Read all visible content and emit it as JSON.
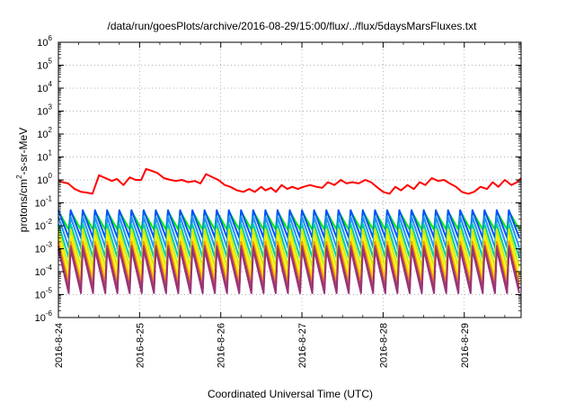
{
  "chart_data": {
    "type": "line",
    "title": "/data/run/goesPlots/archive/2016-08-29/15:00/flux/../flux/5daysMarsFluxes.txt",
    "xlabel": "Coordinated Universal Time (UTC)",
    "ylabel": {
      "base": "protons/cm",
      "sup": "2",
      "rest": "-s-sr-MeV"
    },
    "yscale": "log",
    "ylim_exp": [
      -6,
      6
    ],
    "xlim_days": [
      0,
      5.7
    ],
    "x_ticks": [
      {
        "label": "2016-8-24",
        "pos": 0
      },
      {
        "label": "2016-8-25",
        "pos": 1
      },
      {
        "label": "2016-8-26",
        "pos": 2
      },
      {
        "label": "2016-8-27",
        "pos": 3
      },
      {
        "label": "2016-8-28",
        "pos": 4
      },
      {
        "label": "2016-8-29",
        "pos": 5
      }
    ],
    "y_ticks": [
      {
        "base": "10",
        "exp": "6",
        "value": 6
      },
      {
        "base": "10",
        "exp": "5",
        "value": 5
      },
      {
        "base": "10",
        "exp": "4",
        "value": 4
      },
      {
        "base": "10",
        "exp": "3",
        "value": 3
      },
      {
        "base": "10",
        "exp": "2",
        "value": 2
      },
      {
        "base": "10",
        "exp": "1",
        "value": 1
      },
      {
        "base": "10",
        "exp": "0",
        "value": 0
      },
      {
        "base": "10",
        "exp": "-1",
        "value": -1
      },
      {
        "base": "10",
        "exp": "-2",
        "value": -2
      },
      {
        "base": "10",
        "exp": "-3",
        "value": -3
      },
      {
        "base": "10",
        "exp": "-4",
        "value": -4
      },
      {
        "base": "10",
        "exp": "-5",
        "value": -5
      },
      {
        "base": "10",
        "exp": "-6",
        "value": -6
      }
    ],
    "grid": true,
    "series": [
      {
        "color": "#ff0000",
        "x": [
          0,
          0.05,
          0.12,
          0.2,
          0.28,
          0.35,
          0.42,
          0.5,
          0.58,
          0.66,
          0.72,
          0.8,
          0.88,
          0.95,
          1.02,
          1.08,
          1.15,
          1.22,
          1.3,
          1.38,
          1.45,
          1.52,
          1.6,
          1.68,
          1.75,
          1.82,
          1.9,
          1.97,
          2.05,
          2.12,
          2.2,
          2.28,
          2.35,
          2.42,
          2.5,
          2.55,
          2.62,
          2.68,
          2.75,
          2.82,
          2.88,
          2.95,
          3.02,
          3.1,
          3.18,
          3.25,
          3.32,
          3.4,
          3.48,
          3.55,
          3.62,
          3.7,
          3.78,
          3.85,
          3.92,
          4.0,
          4.08,
          4.15,
          4.22,
          4.3,
          4.38,
          4.45,
          4.52,
          4.6,
          4.68,
          4.75,
          4.82,
          4.9,
          4.97,
          5.05,
          5.12,
          5.2,
          5.28,
          5.35,
          5.42,
          5.5,
          5.58,
          5.65,
          5.7
        ],
        "y": [
          1.0,
          0.8,
          0.7,
          0.4,
          0.3,
          0.28,
          0.25,
          1.6,
          1.2,
          0.9,
          1.1,
          0.6,
          1.3,
          1.0,
          1.0,
          3.0,
          2.5,
          2.0,
          1.2,
          1.0,
          0.9,
          1.0,
          0.8,
          0.9,
          0.7,
          1.8,
          1.3,
          1.0,
          0.6,
          0.5,
          0.35,
          0.3,
          0.4,
          0.3,
          0.5,
          0.35,
          0.45,
          0.3,
          0.6,
          0.4,
          0.5,
          0.4,
          0.5,
          0.6,
          0.5,
          0.45,
          0.8,
          0.6,
          1.0,
          0.7,
          0.8,
          0.7,
          1.0,
          0.8,
          0.5,
          0.3,
          0.25,
          0.5,
          0.35,
          0.6,
          0.4,
          0.8,
          0.6,
          1.2,
          0.9,
          1.0,
          0.7,
          0.5,
          0.3,
          0.25,
          0.3,
          0.5,
          0.4,
          0.8,
          0.5,
          1.0,
          0.6,
          0.8,
          1.2
        ]
      },
      {
        "color": "#00ee00",
        "base": 0.02,
        "amp": 2.2
      },
      {
        "color": "#0050ff",
        "base": 0.012,
        "amp": 4.0
      },
      {
        "color": "#1e90ff",
        "base": 0.005,
        "amp": 5.0
      },
      {
        "color": "#00ccaa",
        "base": 0.002,
        "amp": 6.0
      },
      {
        "color": "#ccee00",
        "base": 0.0009,
        "amp": 8.0
      },
      {
        "color": "#ffee00",
        "base": 0.0004,
        "amp": 9.0
      },
      {
        "color": "#ff9900",
        "base": 0.0002,
        "amp": 10.0
      },
      {
        "color": "#aa4466",
        "base": 0.00012,
        "amp": 11.0
      },
      {
        "color": "#993377",
        "base": 8e-05,
        "amp": 12.0
      }
    ]
  }
}
